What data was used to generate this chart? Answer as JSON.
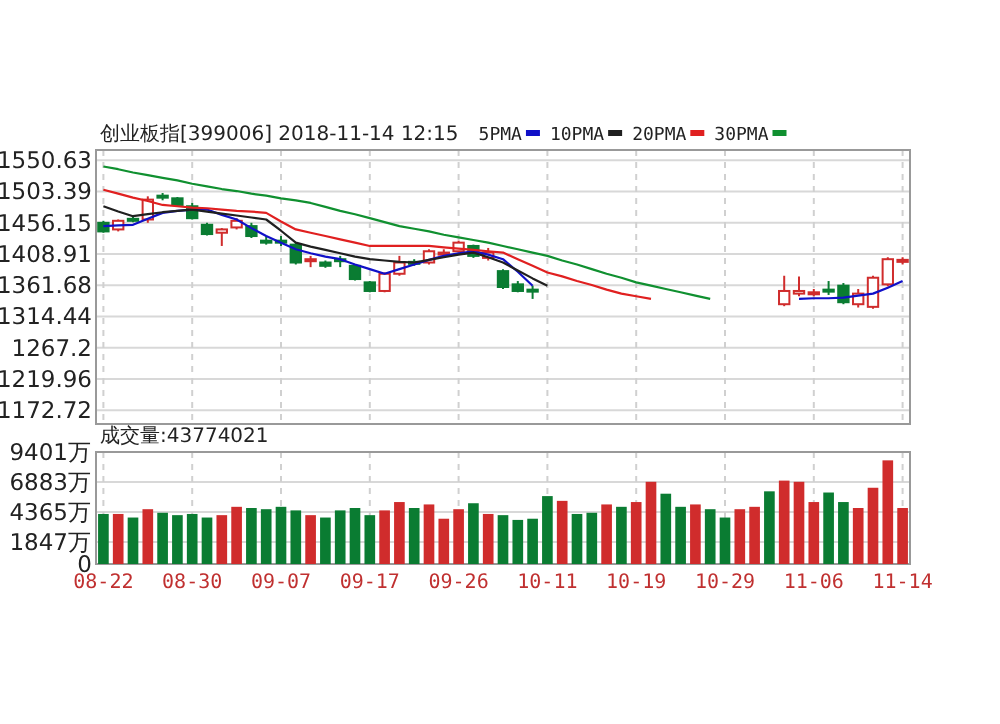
{
  "chart_data": [
    {
      "type": "candlestick",
      "title": "创业板指[399006] 2018-11-14 12:15",
      "ohlc": [
        [
          1456,
          1459,
          1441,
          1443
        ],
        [
          1446,
          1461,
          1443,
          1459
        ],
        [
          1462,
          1465,
          1457,
          1460
        ],
        [
          1461,
          1496,
          1456,
          1491
        ],
        [
          1497,
          1501,
          1490,
          1495
        ],
        [
          1493,
          1495,
          1481,
          1483
        ],
        [
          1481,
          1486,
          1461,
          1463
        ],
        [
          1453,
          1456,
          1437,
          1439
        ],
        [
          1441,
          1448,
          1421,
          1446
        ],
        [
          1449,
          1463,
          1446,
          1459
        ],
        [
          1451,
          1456,
          1433,
          1436
        ],
        [
          1429,
          1436,
          1423,
          1427
        ],
        [
          1429,
          1436,
          1421,
          1427
        ],
        [
          1423,
          1426,
          1393,
          1396
        ],
        [
          1399,
          1406,
          1389,
          1401
        ],
        [
          1396,
          1399,
          1388,
          1391
        ],
        [
          1401,
          1406,
          1389,
          1399
        ],
        [
          1391,
          1393,
          1369,
          1371
        ],
        [
          1366,
          1368,
          1351,
          1353
        ],
        [
          1353,
          1381,
          1351,
          1379
        ],
        [
          1379,
          1406,
          1376,
          1396
        ],
        [
          1397,
          1401,
          1391,
          1395
        ],
        [
          1396,
          1416,
          1393,
          1413
        ],
        [
          1409,
          1416,
          1403,
          1411
        ],
        [
          1413,
          1429,
          1411,
          1426
        ],
        [
          1421,
          1423,
          1403,
          1406
        ],
        [
          1403,
          1418,
          1399,
          1411
        ],
        [
          1383,
          1386,
          1356,
          1359
        ],
        [
          1363,
          1368,
          1351,
          1353
        ],
        [
          1355,
          1361,
          1341,
          1353
        ],
        null,
        null,
        null,
        null,
        null,
        null,
        null,
        null,
        null,
        null,
        null,
        null,
        null,
        null,
        null,
        null,
        [
          1333,
          1376,
          1330,
          1353
        ],
        [
          1349,
          1375,
          1345,
          1353
        ],
        [
          1349,
          1356,
          1345,
          1351
        ],
        [
          1355,
          1368,
          1347,
          1353
        ],
        [
          1361,
          1365,
          1333,
          1336
        ],
        [
          1333,
          1356,
          1328,
          1349
        ],
        [
          1329,
          1376,
          1326,
          1373
        ],
        [
          1363,
          1404,
          1360,
          1401
        ],
        [
          1398,
          1404,
          1393,
          1400
        ]
      ],
      "series": [
        {
          "name": "5PMA",
          "type": "line",
          "color": "#1010c8",
          "values": [
            1451,
            1452,
            1453,
            1462,
            1471,
            1474,
            1476,
            1476,
            1468,
            1461,
            1448,
            1436,
            1426,
            1416,
            1410,
            1405,
            1401,
            1393,
            1386,
            1379,
            1386,
            1393,
            1400,
            1406,
            1410,
            1413,
            1408,
            1401,
            1382,
            1361,
            null,
            null,
            null,
            null,
            null,
            null,
            null,
            null,
            null,
            null,
            null,
            null,
            null,
            null,
            null,
            null,
            null,
            1341,
            1342,
            1342,
            1343,
            1346,
            1349,
            1358,
            1368
          ]
        },
        {
          "name": "10PMA",
          "type": "line",
          "color": "#202020",
          "values": [
            1481,
            1473,
            1466,
            1469,
            1472,
            1474,
            1476,
            1473,
            1470,
            1467,
            1464,
            1461,
            1444,
            1426,
            1420,
            1415,
            1410,
            1405,
            1401,
            1399,
            1397,
            1396,
            1400,
            1404,
            1408,
            1411,
            1404,
            1396,
            1384,
            1372,
            1361,
            null,
            null,
            null,
            null,
            null,
            null,
            null,
            null,
            null,
            null,
            null,
            null,
            null,
            null,
            null,
            null,
            null,
            null,
            null,
            null,
            null,
            null,
            null,
            null
          ]
        },
        {
          "name": "20PMA",
          "type": "line",
          "color": "#e02020",
          "values": [
            1506,
            1500,
            1494,
            1489,
            1483,
            1481,
            1479,
            1478,
            1476,
            1474,
            1473,
            1471,
            1458,
            1446,
            1441,
            1436,
            1431,
            1426,
            1421,
            1421,
            1421,
            1421,
            1421,
            1419,
            1417,
            1415,
            1413,
            1411,
            1401,
            1391,
            1381,
            1375,
            1368,
            1362,
            1355,
            1349,
            1345,
            1341,
            null,
            null,
            null,
            null,
            null,
            null,
            null,
            null,
            null,
            null,
            null,
            null,
            null,
            null,
            null,
            null,
            null
          ]
        },
        {
          "name": "30PMA",
          "type": "line",
          "color": "#109030",
          "values": [
            1541,
            1537,
            1532,
            1528,
            1524,
            1520,
            1515,
            1511,
            1507,
            1504,
            1500,
            1497,
            1493,
            1490,
            1486,
            1480,
            1474,
            1469,
            1463,
            1457,
            1451,
            1447,
            1443,
            1438,
            1434,
            1430,
            1426,
            1421,
            1416,
            1411,
            1406,
            1399,
            1393,
            1386,
            1379,
            1373,
            1366,
            1361,
            1356,
            1351,
            1346,
            1341,
            null,
            null,
            null,
            null,
            null,
            null,
            null,
            null,
            null,
            null,
            null,
            null,
            null
          ]
        }
      ],
      "ylim": [
        1152,
        1566
      ],
      "yticks": [
        1172.72,
        1219.96,
        1267.2,
        1314.44,
        1361.68,
        1408.91,
        1456.15,
        1503.39,
        1550.63
      ],
      "grid": true,
      "legend": "top",
      "tick_labels": "y"
    },
    {
      "type": "bar",
      "title": "成交量:43774021",
      "categories": [
        "08-22",
        null,
        null,
        null,
        null,
        null,
        "08-30",
        null,
        null,
        null,
        null,
        null,
        "09-07",
        null,
        null,
        null,
        null,
        null,
        "09-17",
        null,
        null,
        null,
        null,
        null,
        "09-26",
        null,
        null,
        null,
        null,
        null,
        "10-11",
        null,
        null,
        null,
        null,
        null,
        "10-19",
        null,
        null,
        null,
        null,
        null,
        "10-29",
        null,
        null,
        null,
        null,
        null,
        "11-06",
        null,
        null,
        null,
        null,
        null,
        "11-14"
      ],
      "values": [
        4200,
        4200,
        3900,
        4600,
        4300,
        4100,
        4200,
        3900,
        4100,
        4800,
        4700,
        4600,
        4800,
        4500,
        4100,
        3900,
        4500,
        4700,
        4100,
        4500,
        5200,
        4700,
        5000,
        3800,
        4600,
        5100,
        4200,
        4100,
        3700,
        3800,
        5700,
        5300,
        4200,
        4300,
        5000,
        4800,
        5200,
        6900,
        5900,
        4800,
        5000,
        4600,
        3900,
        4600,
        4800,
        6100,
        7000,
        6900,
        5200,
        6000,
        5200,
        4700,
        6400,
        8700,
        4700
      ],
      "colors": [
        "#0a7c32",
        "#d02c2c",
        "#0a7c32",
        "#d02c2c",
        "#0a7c32",
        "#0a7c32",
        "#0a7c32",
        "#0a7c32",
        "#d02c2c",
        "#d02c2c",
        "#0a7c32",
        "#0a7c32",
        "#0a7c32",
        "#0a7c32",
        "#d02c2c",
        "#0a7c32",
        "#0a7c32",
        "#0a7c32",
        "#0a7c32",
        "#d02c2c",
        "#d02c2c",
        "#0a7c32",
        "#d02c2c",
        "#d02c2c",
        "#d02c2c",
        "#0a7c32",
        "#d02c2c",
        "#0a7c32",
        "#0a7c32",
        "#0a7c32",
        "#0a7c32",
        "#d02c2c",
        "#0a7c32",
        "#0a7c32",
        "#d02c2c",
        "#0a7c32",
        "#d02c2c",
        "#d02c2c",
        "#0a7c32",
        "#0a7c32",
        "#d02c2c",
        "#0a7c32",
        "#0a7c32",
        "#d02c2c",
        "#d02c2c",
        "#0a7c32",
        "#d02c2c",
        "#d02c2c",
        "#d02c2c",
        "#0a7c32",
        "#0a7c32",
        "#d02c2c",
        "#d02c2c",
        "#d02c2c",
        "#d02c2c"
      ],
      "ylim": [
        0,
        9401
      ],
      "yticks": [
        0,
        {
          "value": 1847,
          "label": "1847万"
        },
        {
          "value": 4365,
          "label": "4365万"
        },
        {
          "value": 6883,
          "label": "6883万"
        },
        {
          "value": 9401,
          "label": "9401万"
        }
      ],
      "grid": true
    }
  ]
}
